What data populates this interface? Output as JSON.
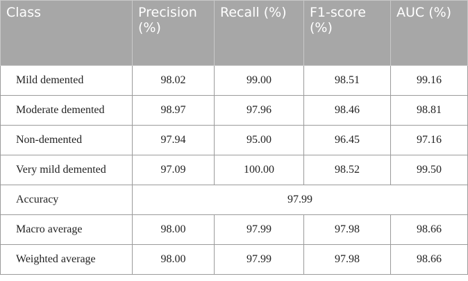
{
  "table": {
    "header": [
      "Class",
      "Precision (%)",
      "Recall (%)",
      "F1-score (%)",
      "AUC (%)"
    ],
    "rows": [
      [
        "Mild demented",
        "98.02",
        "99.00",
        "98.51",
        "99.16"
      ],
      [
        "Moderate demented",
        "98.97",
        "97.96",
        "98.46",
        "98.81"
      ],
      [
        "Non-demented",
        "97.94",
        "95.00",
        "96.45",
        "97.16"
      ],
      [
        "Very mild demented",
        "97.09",
        "100.00",
        "98.52",
        "99.50"
      ],
      [
        "Accuracy",
        "97.99"
      ],
      [
        "Macro average",
        "98.00",
        "97.99",
        "97.98",
        "98.66"
      ],
      [
        "Weighted average",
        "98.00",
        "97.99",
        "97.98",
        "98.66"
      ]
    ]
  }
}
